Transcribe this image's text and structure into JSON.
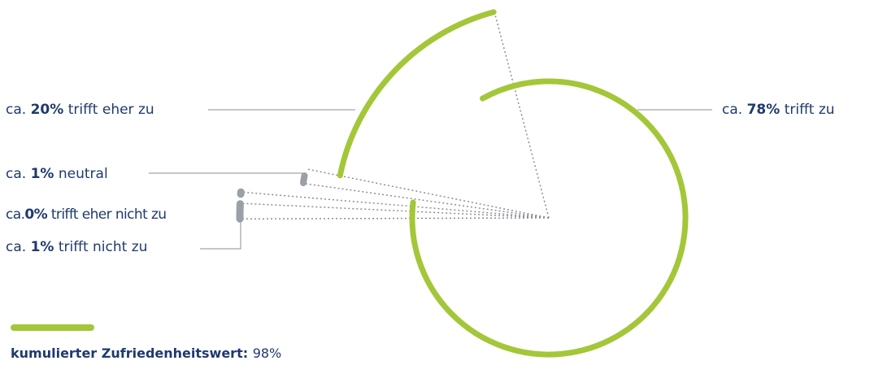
{
  "chart_data": {
    "type": "pie",
    "slices": [
      {
        "name": "trifft zu",
        "prefix": "ca. ",
        "value_label": "78",
        "unit": "%",
        "value": 78,
        "color": "#a4c639"
      },
      {
        "name": "trifft eher zu",
        "prefix": "ca. ",
        "value_label": "20",
        "unit": "%",
        "value": 20,
        "color": "#a4c639"
      },
      {
        "name": "neutral",
        "prefix": "ca. ",
        "value_label": "1",
        "unit": "%",
        "value": 1,
        "color": "#9aa0a6"
      },
      {
        "name": "trifft eher nicht zu",
        "prefix": "ca.",
        "value_label": "0",
        "unit": "%",
        "value": 0,
        "color": "#9aa0a6"
      },
      {
        "name": "trifft nicht zu",
        "prefix": "ca. ",
        "value_label": "1",
        "unit": "%",
        "value": 1,
        "color": "#9aa0a6"
      }
    ]
  },
  "legend": {
    "label": "kumulierter Zufriedenheitswert: ",
    "value": "98%",
    "color": "#a4c639"
  },
  "colors": {
    "positive": "#a4c639",
    "neutral_negative": "#9aa0a6",
    "text": "#1f3a6e",
    "leader": "#8a8f95"
  }
}
